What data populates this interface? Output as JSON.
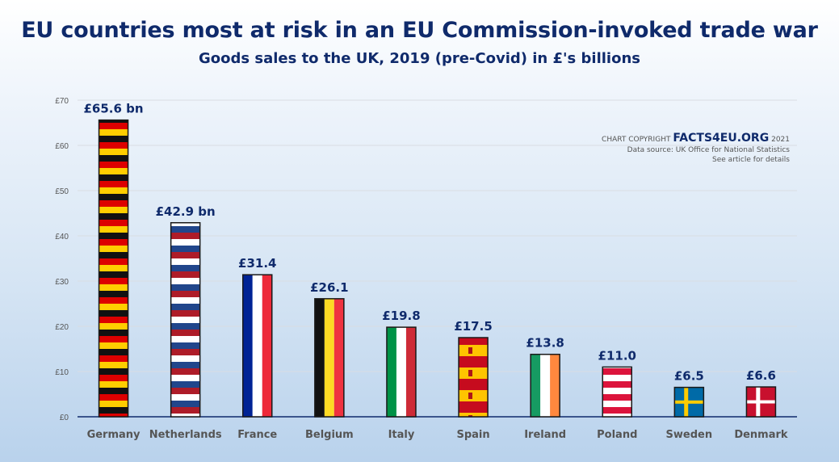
{
  "chart_data": {
    "type": "bar",
    "title": "EU countries most at risk in an EU Commission-invoked trade war",
    "subtitle": "Goods sales to the UK, 2019 (pre-Covid) in £'s billions",
    "categories": [
      "Germany",
      "Netherlands",
      "France",
      "Belgium",
      "Italy",
      "Spain",
      "Ireland",
      "Poland",
      "Sweden",
      "Denmark"
    ],
    "values": [
      65.6,
      42.9,
      31.4,
      26.1,
      19.8,
      17.5,
      13.8,
      11.0,
      6.5,
      6.6
    ],
    "data_labels": [
      "£65.6 bn",
      "£42.9 bn",
      "£31.4",
      "£26.1",
      "£19.8",
      "£17.5",
      "£13.8",
      "£11.0",
      "£6.5",
      "£6.6"
    ],
    "y_ticks": [
      "£0",
      "£10",
      "£20",
      "£30",
      "£40",
      "£50",
      "£60",
      "£70"
    ],
    "y_tick_values": [
      0,
      10,
      20,
      30,
      40,
      50,
      60,
      70
    ],
    "ylim": [
      0,
      70
    ],
    "xlabel": "",
    "ylabel": "",
    "grid": true,
    "bar_fill": [
      "germany-flag",
      "netherlands-flag",
      "france-flag",
      "belgium-flag",
      "italy-flag",
      "spain-flag",
      "ireland-flag",
      "poland-flag",
      "sweden-flag",
      "denmark-flag"
    ]
  },
  "credits": {
    "prefix": "CHART COPYRIGHT",
    "brand": "FACTS4EU.ORG",
    "year": "2021",
    "source": "Data source: UK Office for National Statistics",
    "note": "See article for details"
  },
  "colors": {
    "title": "#0f2a6b",
    "gridline": "#d9dde3",
    "axis": "#0f2a6b"
  }
}
